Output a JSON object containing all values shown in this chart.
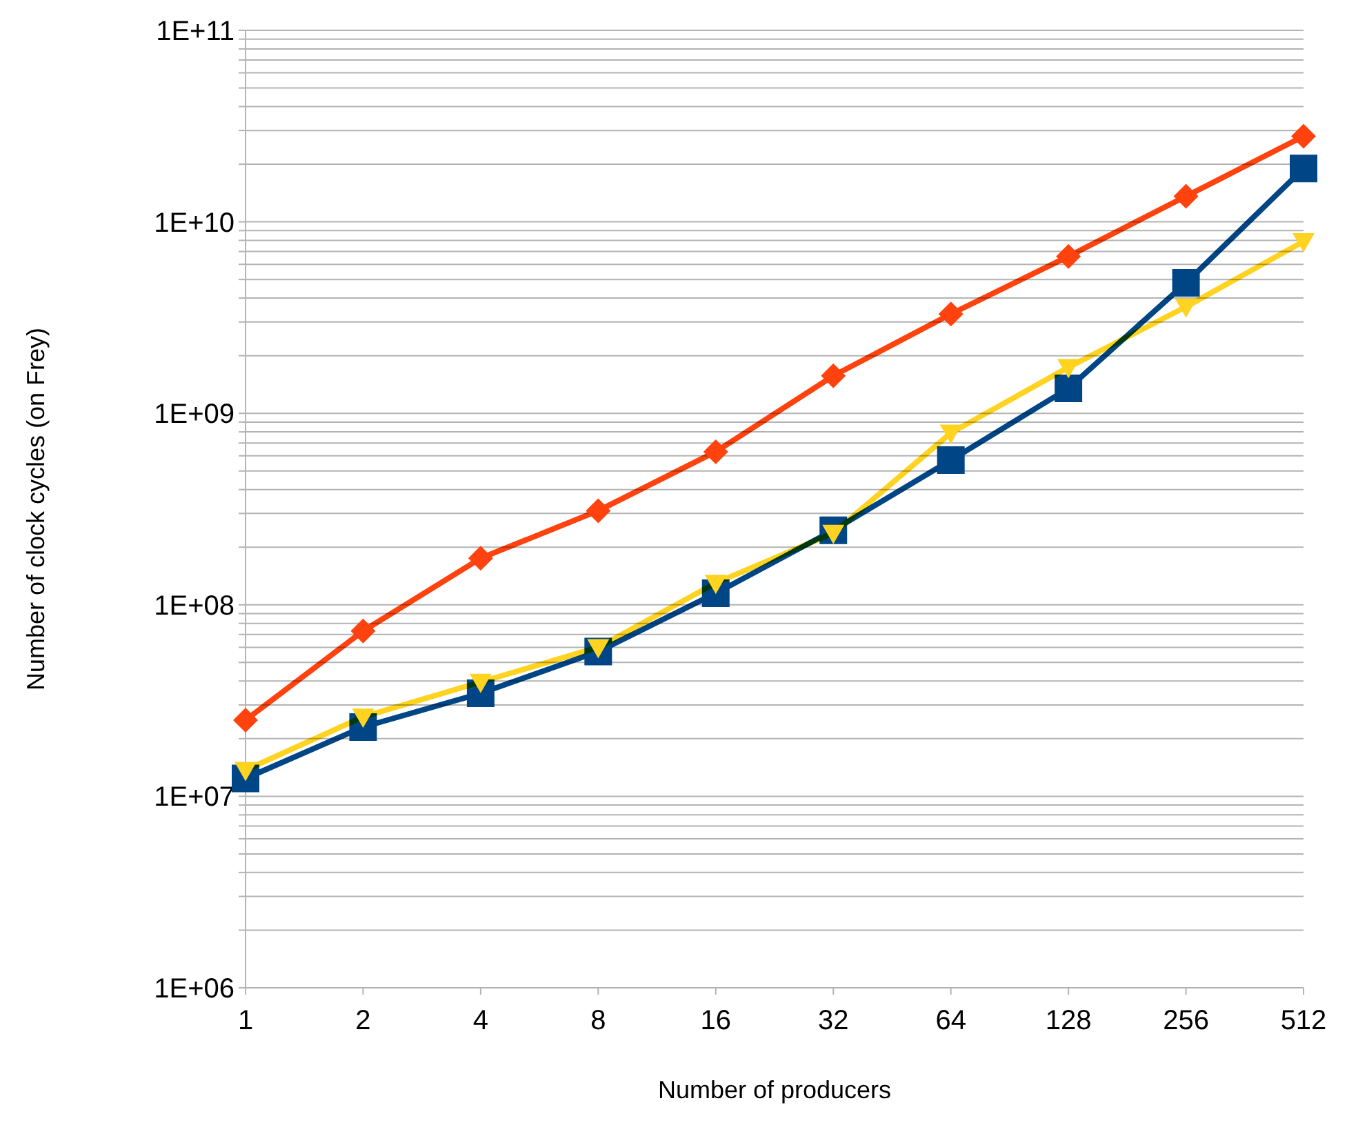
{
  "chart_data": {
    "type": "line",
    "xlabel": "Number of producers",
    "ylabel": "Number of clock cycles  (on Frey)",
    "categories": [
      "1",
      "2",
      "4",
      "8",
      "16",
      "32",
      "64",
      "128",
      "256",
      "512"
    ],
    "series": [
      {
        "color": "#ff420e",
        "marker": "diamond",
        "values": [
          25000000.0,
          73000000.0,
          175000000.0,
          310000000.0,
          630000000.0,
          1570000000.0,
          3300000000.0,
          6600000000.0,
          13600000000.0,
          28000000000.0
        ]
      },
      {
        "color": "#004586",
        "marker": "square",
        "values": [
          12400000.0,
          23000000.0,
          34500000.0,
          57000000.0,
          115000000.0,
          245000000.0,
          570000000.0,
          1350000000.0,
          4800000000.0,
          19000000000.0
        ]
      },
      {
        "color": "#ffd320",
        "marker": "triangle",
        "values": [
          13700000.0,
          26000000.0,
          39500000.0,
          60000000.0,
          130000000.0,
          237000000.0,
          790000000.0,
          1740000000.0,
          3600000000.0,
          7900000000.0
        ]
      }
    ],
    "log": "y",
    "ylim": [
      1000000.0,
      100000000000.0
    ],
    "yticks": [
      {
        "value": 1000000.0,
        "label": "1E+06"
      },
      {
        "value": 2000000.0,
        "label": null
      },
      {
        "value": 3000000.0,
        "label": null
      },
      {
        "value": 4000000.0,
        "label": null
      },
      {
        "value": 5000000.0,
        "label": null
      },
      {
        "value": 6000000.0,
        "label": null
      },
      {
        "value": 7000000.0,
        "label": null
      },
      {
        "value": 8000000.0,
        "label": null
      },
      {
        "value": 9000000.0,
        "label": null
      },
      {
        "value": 10000000.0,
        "label": "1E+07"
      },
      {
        "value": 20000000.0,
        "label": null
      },
      {
        "value": 30000000.0,
        "label": null
      },
      {
        "value": 40000000.0,
        "label": null
      },
      {
        "value": 50000000.0,
        "label": null
      },
      {
        "value": 60000000.0,
        "label": null
      },
      {
        "value": 70000000.0,
        "label": null
      },
      {
        "value": 80000000.0,
        "label": null
      },
      {
        "value": 90000000.0,
        "label": null
      },
      {
        "value": 100000000.0,
        "label": "1E+08"
      },
      {
        "value": 200000000.0,
        "label": null
      },
      {
        "value": 300000000.0,
        "label": null
      },
      {
        "value": 400000000.0,
        "label": null
      },
      {
        "value": 500000000.0,
        "label": null
      },
      {
        "value": 600000000.0,
        "label": null
      },
      {
        "value": 700000000.0,
        "label": null
      },
      {
        "value": 800000000.0,
        "label": null
      },
      {
        "value": 900000000.0,
        "label": null
      },
      {
        "value": 1000000000.0,
        "label": "1E+09"
      },
      {
        "value": 2000000000.0,
        "label": null
      },
      {
        "value": 3000000000.0,
        "label": null
      },
      {
        "value": 4000000000.0,
        "label": null
      },
      {
        "value": 5000000000.0,
        "label": null
      },
      {
        "value": 6000000000.0,
        "label": null
      },
      {
        "value": 7000000000.0,
        "label": null
      },
      {
        "value": 8000000000.0,
        "label": null
      },
      {
        "value": 9000000000.0,
        "label": null
      },
      {
        "value": 10000000000.0,
        "label": "1E+10"
      },
      {
        "value": 20000000000.0,
        "label": null
      },
      {
        "value": 30000000000.0,
        "label": null
      },
      {
        "value": 40000000000.0,
        "label": null
      },
      {
        "value": 50000000000.0,
        "label": null
      },
      {
        "value": 60000000000.0,
        "label": null
      },
      {
        "value": 70000000000.0,
        "label": null
      },
      {
        "value": 80000000000.0,
        "label": null
      },
      {
        "value": 90000000000.0,
        "label": null
      },
      {
        "value": 100000000000.0,
        "label": "1E+11"
      }
    ],
    "grid": "y",
    "line_style": "solid"
  }
}
